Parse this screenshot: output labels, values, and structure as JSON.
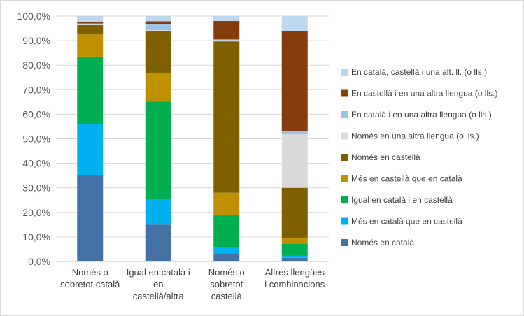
{
  "chart_data": {
    "type": "bar",
    "stacked": true,
    "title": "",
    "xlabel": "",
    "ylabel": "",
    "ylim": [
      0,
      100
    ],
    "y_ticks": [
      "0,0%",
      "10,0%",
      "20,0%",
      "30,0%",
      "40,0%",
      "50,0%",
      "60,0%",
      "70,0%",
      "80,0%",
      "90,0%",
      "100,0%"
    ],
    "grid": true,
    "legend_position": "right",
    "categories": [
      [
        "Només o",
        "sobretot català"
      ],
      [
        "Igual en català i",
        "en",
        "castellà/altra"
      ],
      [
        "Només o",
        "sobretot",
        "castellà"
      ],
      [
        "Altres llengües",
        "i combinacions"
      ]
    ],
    "series": [
      {
        "name": "Només en català",
        "color": "#4472a4",
        "values": [
          35.3,
          15.0,
          3.0,
          1.5
        ]
      },
      {
        "name": "Més en català que en castellà",
        "color": "#00b0f0",
        "values": [
          20.7,
          10.5,
          2.5,
          0.8
        ]
      },
      {
        "name": "Igual en català i en castellà",
        "color": "#00b050",
        "values": [
          27.5,
          39.7,
          13.3,
          5.0
        ]
      },
      {
        "name": "Més en castellà que en català",
        "color": "#bf9000",
        "values": [
          9.0,
          11.5,
          9.2,
          2.2
        ]
      },
      {
        "name": "Només en castellà",
        "color": "#7f6000",
        "values": [
          3.8,
          17.3,
          61.7,
          20.5
        ]
      },
      {
        "name": "Només en una altra llengua (o lls.)",
        "color": "#d9d9d9",
        "values": [
          0.2,
          0.3,
          0.5,
          22.0
        ]
      },
      {
        "name": "En català i en una altra llengua (o lls.)",
        "color": "#9dc3e6",
        "values": [
          0.5,
          2.3,
          0.3,
          1.2
        ]
      },
      {
        "name": "En castellà i en una altra llengua (o lls.)",
        "color": "#843c0c",
        "values": [
          0.5,
          1.3,
          7.5,
          40.8
        ]
      },
      {
        "name": "En català, castellà i una alt. ll. (o lls.)",
        "color": "#bdd7ee",
        "values": [
          2.5,
          2.1,
          2.0,
          6.0
        ]
      }
    ]
  }
}
